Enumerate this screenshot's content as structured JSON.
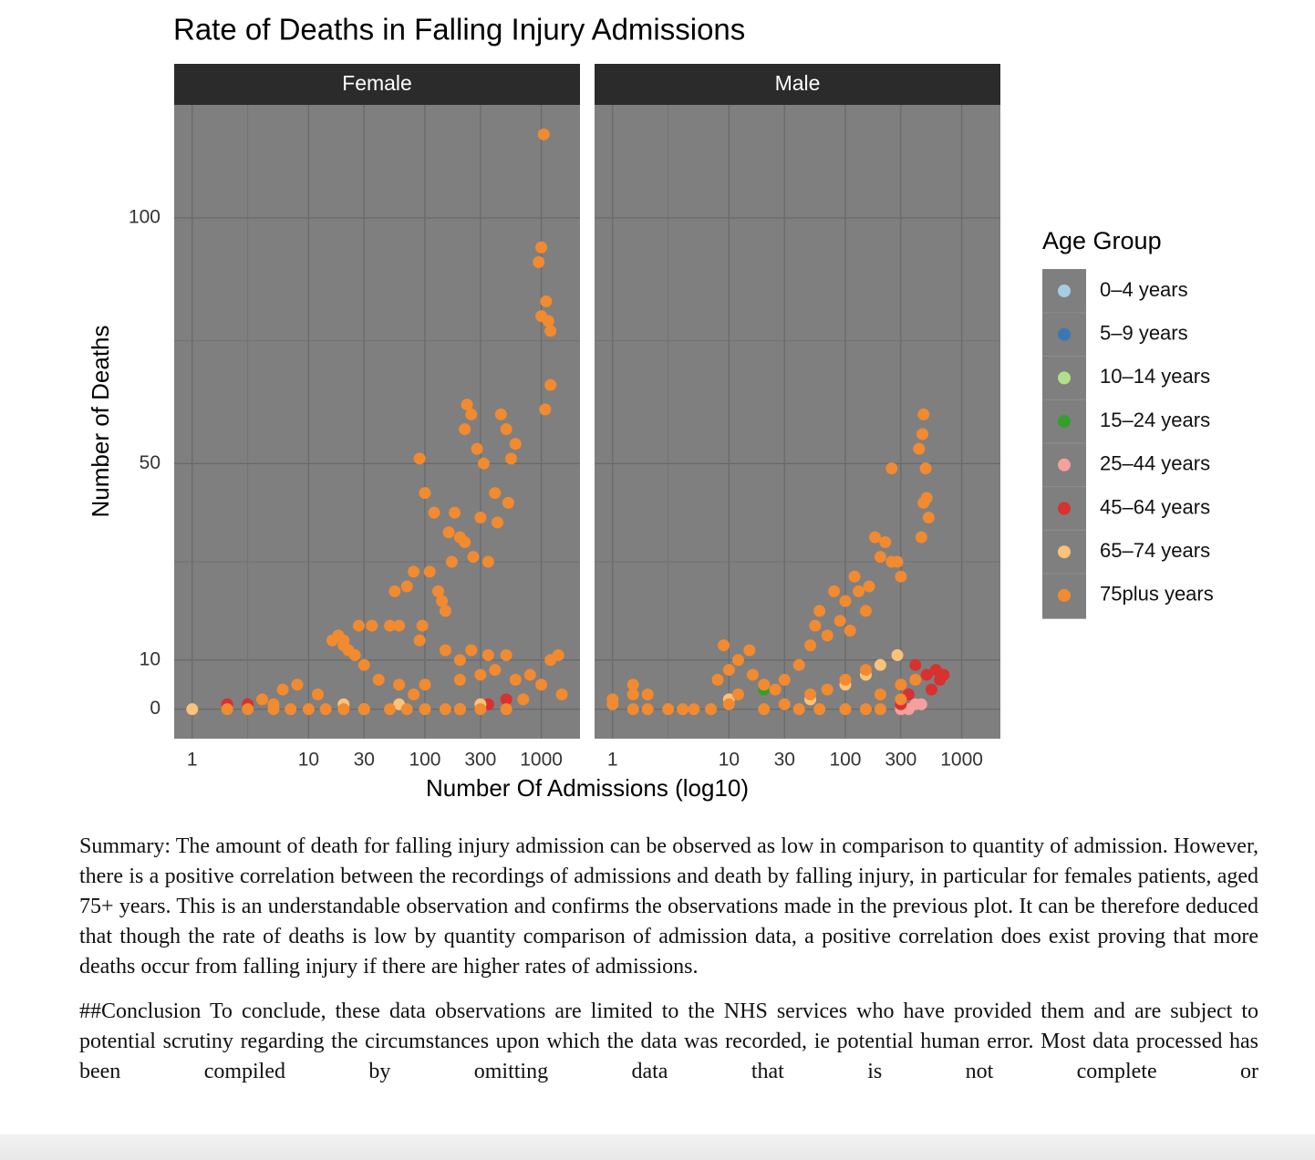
{
  "chart_data": {
    "type": "scatter",
    "title": "Rate of Deaths in Falling Injury Admissions",
    "x_label": "Number Of Admissions (log10)",
    "y_label": "Number of Deaths",
    "panels": [
      "Female",
      "Male"
    ],
    "xscale": "log",
    "xlim": [
      0.7,
      2150
    ],
    "xticks": [
      1,
      10,
      30,
      100,
      300,
      1000
    ],
    "minor_xticks": [
      3
    ],
    "ylim": [
      -6,
      123
    ],
    "yticks": [
      0,
      10,
      50,
      100
    ],
    "minor_yticks": [
      30,
      75
    ],
    "grid": true,
    "legend_title": "Age Group",
    "legend": "right",
    "series": [
      {
        "name": "0–4 years",
        "color": "#a6cee3",
        "panels": [
          {
            "x": [],
            "y": []
          },
          {
            "x": [],
            "y": []
          }
        ]
      },
      {
        "name": "5–9 years",
        "color": "#3a78b4",
        "panels": [
          {
            "x": [],
            "y": []
          },
          {
            "x": [],
            "y": []
          }
        ]
      },
      {
        "name": "10–14 years",
        "color": "#b2df8a",
        "panels": [
          {
            "x": [],
            "y": []
          },
          {
            "x": [],
            "y": []
          }
        ]
      },
      {
        "name": "15–24 years",
        "color": "#33a02c",
        "panels": [
          {
            "x": [],
            "y": []
          },
          {
            "x": [
              20
            ],
            "y": [
              4
            ]
          }
        ]
      },
      {
        "name": "25–44 years",
        "color": "#f4a09f",
        "panels": [
          {
            "x": [],
            "y": []
          },
          {
            "x": [
              350,
              400,
              450,
              300
            ],
            "y": [
              0,
              1,
              1,
              0
            ]
          }
        ]
      },
      {
        "name": "45–64 years",
        "color": "#d93030",
        "panels": [
          {
            "x": [
              2,
              3,
              20,
              350,
              500
            ],
            "y": [
              1,
              1,
              1,
              1,
              2
            ]
          },
          {
            "x": [
              300,
              350,
              400,
              500,
              600,
              650,
              700,
              550
            ],
            "y": [
              1,
              3,
              9,
              7,
              8,
              6,
              7,
              4
            ]
          }
        ]
      },
      {
        "name": "65–74 years",
        "color": "#fbc27a",
        "panels": [
          {
            "x": [
              1,
              20,
              30,
              60,
              200,
              300
            ],
            "y": [
              0,
              1,
              0,
              1,
              0,
              1
            ]
          },
          {
            "x": [
              10,
              50,
              100,
              200,
              280,
              150
            ],
            "y": [
              2,
              2,
              5,
              9,
              11,
              7
            ]
          }
        ]
      },
      {
        "name": "75plus years",
        "color": "#f28a30",
        "panels": [
          {
            "x": [
              16,
              18,
              20,
              22,
              25,
              20,
              30,
              27,
              35,
              50,
              60,
              55,
              70,
              80,
              90,
              95,
              90,
              100,
              110,
              120,
              130,
              140,
              150,
              160,
              170,
              180,
              200,
              220,
              230,
              250,
              220,
              280,
              300,
              260,
              320,
              350,
              400,
              450,
              500,
              550,
              600,
              420,
              520,
              1050,
              1000,
              950,
              1100,
              1000,
              1150,
              1200,
              1200,
              1080,
              150,
              200,
              250,
              350,
              500,
              1200,
              1400,
              100,
              200,
              300,
              400,
              600,
              800,
              1000,
              1500,
              700,
              12,
              8,
              6,
              40,
              60,
              80,
              4,
              5,
              2,
              3,
              5,
              7,
              10,
              14,
              20,
              30,
              50,
              70,
              100,
              150,
              200,
              300,
              500
            ],
            "y": [
              14,
              15,
              14,
              12,
              11,
              13,
              9,
              17,
              17,
              17,
              17,
              24,
              25,
              28,
              14,
              17,
              51,
              44,
              28,
              40,
              24,
              22,
              20,
              36,
              30,
              40,
              35,
              34,
              62,
              60,
              57,
              53,
              39,
              31,
              50,
              30,
              44,
              60,
              57,
              51,
              54,
              38,
              42,
              117,
              94,
              91,
              83,
              80,
              79,
              77,
              66,
              61,
              12,
              10,
              12,
              11,
              11,
              10,
              11,
              5,
              6,
              7,
              8,
              6,
              7,
              5,
              3,
              2,
              3,
              5,
              4,
              6,
              5,
              3,
              2,
              1,
              0,
              0,
              0,
              0,
              0,
              0,
              0,
              0,
              0,
              0,
              0,
              0,
              0,
              0,
              0
            ]
          },
          {
            "x": [
              1,
              1,
              1.5,
              1.5,
              1.5,
              2,
              2,
              3,
              4,
              5,
              7,
              10,
              12,
              8,
              10,
              12,
              9,
              15,
              16,
              20,
              25,
              30,
              40,
              50,
              55,
              60,
              70,
              80,
              90,
              100,
              110,
              120,
              130,
              150,
              160,
              180,
              200,
              220,
              250,
              280,
              300,
              250,
              430,
              460,
              470,
              490,
              470,
              500,
              520,
              450,
              30,
              50,
              70,
              100,
              150,
              200,
              300,
              400,
              60,
              100,
              150,
              200,
              300,
              20,
              40
            ],
            "y": [
              1,
              2,
              0,
              3,
              5,
              0,
              3,
              0,
              0,
              0,
              0,
              1,
              3,
              6,
              8,
              10,
              13,
              12,
              7,
              5,
              4,
              6,
              9,
              13,
              17,
              20,
              15,
              24,
              18,
              22,
              16,
              27,
              24,
              20,
              25,
              35,
              31,
              34,
              30,
              30,
              27,
              49,
              53,
              56,
              60,
              49,
              42,
              43,
              39,
              35,
              1,
              3,
              4,
              6,
              8,
              3,
              5,
              6,
              0,
              0,
              0,
              0,
              2,
              0,
              0
            ]
          }
        ]
      }
    ]
  },
  "document": {
    "summary": "Summary: The amount of death for falling injury admission can be observed as low in comparison to quantity of admission. However, there is a positive correlation between the recordings of admissions and death by falling injury, in particular for females patients, aged 75+ years. This is an understandable observation and confirms the observations made in the previous plot. It can be therefore deduced that though the rate of deaths is low by quantity comparison of admission data, a positive correlation does exist proving that more deaths occur from falling injury if there are higher rates of admissions.",
    "conclusion": "##Conclusion To conclude, these data observations are limited to the NHS services who have provided them and are subject to potential scrutiny regarding the circumstances upon which the data was recorded, ie potential human error. Most data processed has been compiled by omitting data that is not complete or"
  }
}
